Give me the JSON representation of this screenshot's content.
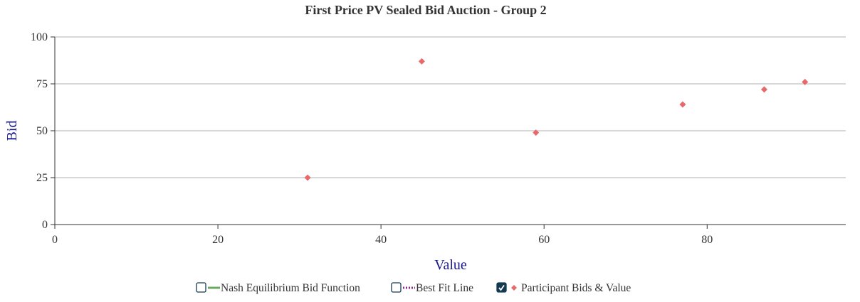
{
  "chart_data": {
    "type": "scatter",
    "title": "First Price PV Sealed Bid Auction - Group 2",
    "xlabel": "Value",
    "ylabel": "Bid",
    "xlim": [
      0,
      97
    ],
    "ylim": [
      0,
      100
    ],
    "x_ticks": [
      0,
      20,
      40,
      60,
      80
    ],
    "y_ticks": [
      0,
      25,
      50,
      75,
      100
    ],
    "grid": "horizontal",
    "legend_position": "bottom",
    "series": [
      {
        "name": "Participant Bids & Value",
        "color": "#e8696b",
        "marker": "diamond",
        "visible": true,
        "points": [
          {
            "x": 31,
            "y": 25
          },
          {
            "x": 45,
            "y": 87
          },
          {
            "x": 59,
            "y": 49
          },
          {
            "x": 77,
            "y": 64
          },
          {
            "x": 87,
            "y": 72
          },
          {
            "x": 92,
            "y": 76
          }
        ]
      }
    ]
  },
  "legend": {
    "items": [
      {
        "label": "Nash Equilibrium Bid Function",
        "checked": false,
        "swatch": "solid-line",
        "color": "#6aaa64"
      },
      {
        "label": "Best Fit Line",
        "checked": false,
        "swatch": "dotted-line",
        "color": "#8e2a8e"
      },
      {
        "label": "Participant Bids & Value",
        "checked": true,
        "swatch": "diamond",
        "color": "#e8696b"
      }
    ],
    "checkbox_color": "#143a52"
  }
}
